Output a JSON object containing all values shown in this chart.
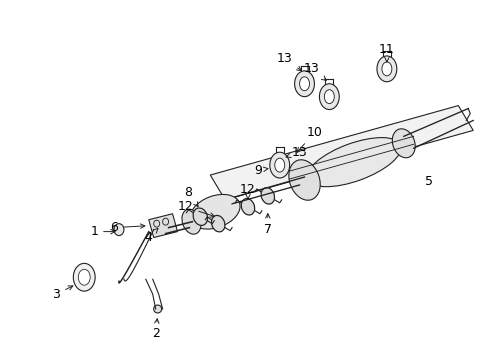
{
  "bg_color": "#ffffff",
  "line_color": "#222222",
  "font_size": 9,
  "figsize": [
    4.89,
    3.6
  ],
  "dpi": 100
}
